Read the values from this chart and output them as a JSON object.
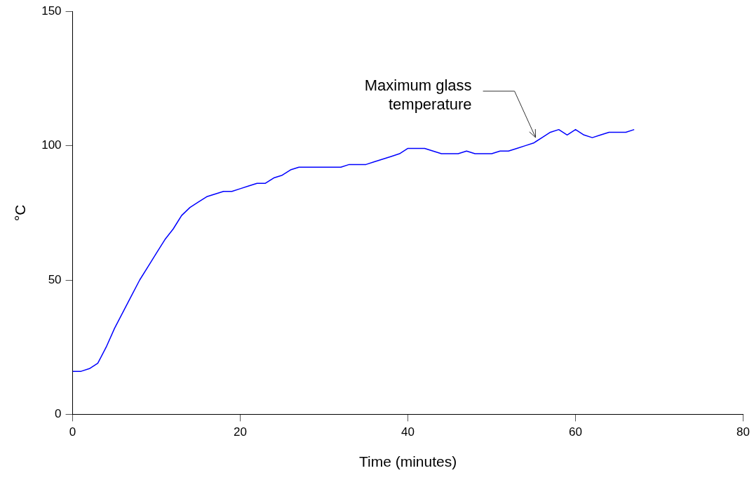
{
  "chart_data": {
    "type": "line",
    "xlabel": "Time (minutes)",
    "ylabel": "°C",
    "xlim": [
      0,
      80
    ],
    "xticks": [
      0,
      20,
      40,
      60,
      80
    ],
    "ylim": [
      0,
      150
    ],
    "yticks": [
      0,
      50,
      100,
      150
    ],
    "grid": false,
    "legend": false,
    "marker": "none",
    "line_style": "solid",
    "annotations": [
      {
        "text": "Maximum glass\ntemperature",
        "x": 55.4,
        "y": 102
      }
    ],
    "series": [
      {
        "color": "#0000ff",
        "x": [
          0,
          1,
          2,
          3,
          4,
          5,
          6,
          7,
          8,
          9,
          10,
          11,
          12,
          13,
          14,
          15,
          16,
          17,
          18,
          19,
          20,
          21,
          22,
          23,
          24,
          25,
          26,
          27,
          28,
          29,
          30,
          31,
          32,
          33,
          34,
          35,
          36,
          37,
          38,
          39,
          40,
          41,
          42,
          43,
          44,
          45,
          46,
          47,
          48,
          49,
          50,
          51,
          52,
          53,
          54,
          55,
          56,
          57,
          58,
          59,
          60,
          61,
          62,
          63,
          64,
          65,
          66,
          67
        ],
        "values": [
          16,
          16,
          17,
          19,
          25,
          32,
          38,
          44,
          50,
          55,
          60,
          65,
          69,
          74,
          77,
          79,
          81,
          82,
          83,
          83,
          84,
          85,
          86,
          86,
          88,
          89,
          91,
          92,
          92,
          92,
          92,
          92,
          92,
          93,
          93,
          93,
          94,
          95,
          96,
          97,
          99,
          99,
          99,
          98,
          97,
          97,
          97,
          98,
          97,
          97,
          97,
          98,
          98,
          99,
          100,
          101,
          103,
          105,
          106,
          104,
          106,
          104,
          103,
          104,
          105,
          105,
          105,
          106
        ]
      }
    ]
  }
}
